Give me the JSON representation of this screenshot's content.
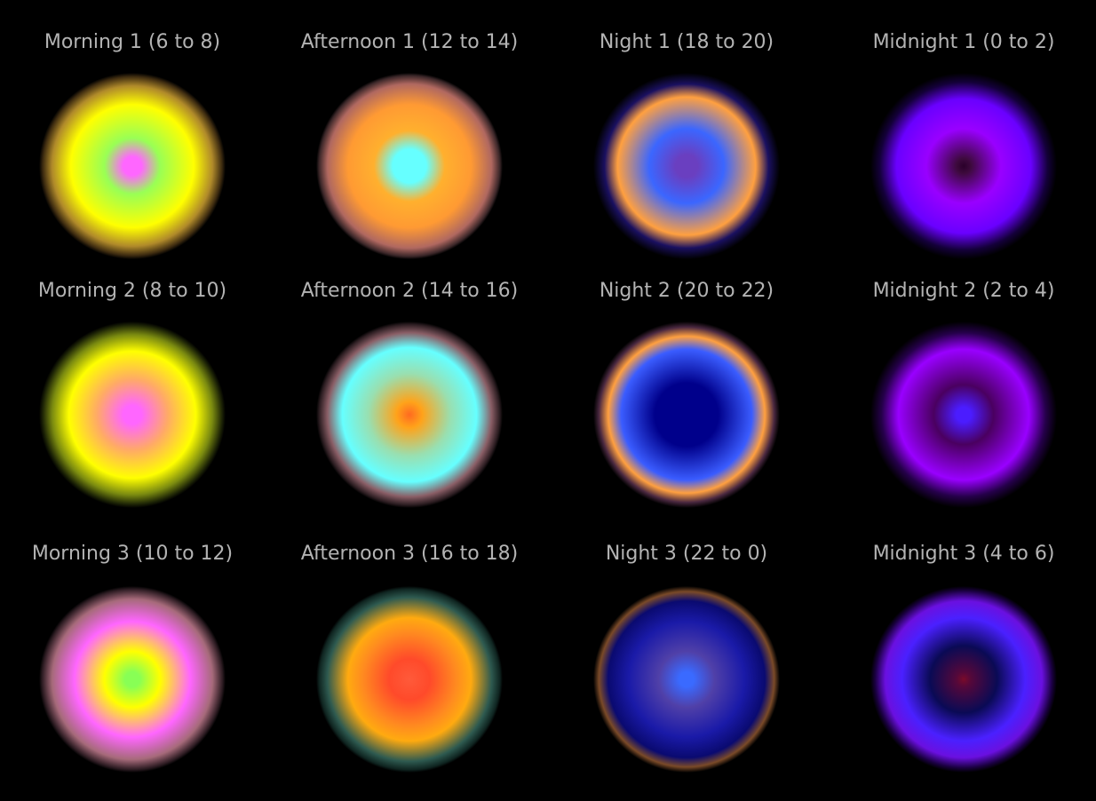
{
  "background": "#000000",
  "label_color": "#b3b3b3",
  "rows": [
    {
      "items": [
        {
          "name": "morning-1",
          "label": "Morning 1 (6 to 8)",
          "stops": [
            {
              "color": "#ff66ff",
              "pos": 0
            },
            {
              "color": "#ff66ff",
              "pos": 10
            },
            {
              "color": "#99ff55",
              "pos": 30
            },
            {
              "color": "#ffff00",
              "pos": 66
            },
            {
              "color": "#b08a2a",
              "pos": 86
            },
            {
              "color": "#3d2b10",
              "pos": 96
            },
            {
              "color": "#000000",
              "pos": 100
            }
          ]
        },
        {
          "name": "afternoon-1",
          "label": "Afternoon 1 (12 to 14)",
          "stops": [
            {
              "color": "#66ffff",
              "pos": 0
            },
            {
              "color": "#66ffff",
              "pos": 18
            },
            {
              "color": "#ffb02e",
              "pos": 38
            },
            {
              "color": "#ff9a33",
              "pos": 66
            },
            {
              "color": "#b06860",
              "pos": 88
            },
            {
              "color": "#3a2628",
              "pos": 97
            },
            {
              "color": "#000000",
              "pos": 100
            }
          ]
        },
        {
          "name": "night-1",
          "label": "Night 1 (18 to 20)",
          "stops": [
            {
              "color": "#6a3fc0",
              "pos": 0
            },
            {
              "color": "#6a3fc0",
              "pos": 12
            },
            {
              "color": "#3b66ff",
              "pos": 40
            },
            {
              "color": "#ffa040",
              "pos": 74
            },
            {
              "color": "#1a1060",
              "pos": 88
            },
            {
              "color": "#000000",
              "pos": 100
            }
          ]
        },
        {
          "name": "midnight-1",
          "label": "Midnight 1 (0 to 2)",
          "stops": [
            {
              "color": "#2a002a",
              "pos": 0
            },
            {
              "color": "#3d0a3d",
              "pos": 8
            },
            {
              "color": "#9900ff",
              "pos": 40
            },
            {
              "color": "#6a00ff",
              "pos": 72
            },
            {
              "color": "#14003a",
              "pos": 90
            },
            {
              "color": "#000000",
              "pos": 100
            }
          ]
        }
      ]
    },
    {
      "items": [
        {
          "name": "morning-2",
          "label": "Morning 2 (8 to 10)",
          "stops": [
            {
              "color": "#ff66ff",
              "pos": 0
            },
            {
              "color": "#ff66ff",
              "pos": 10
            },
            {
              "color": "#ffaa66",
              "pos": 38
            },
            {
              "color": "#ffff00",
              "pos": 68
            },
            {
              "color": "#7a8a10",
              "pos": 86
            },
            {
              "color": "#1f2606",
              "pos": 96
            },
            {
              "color": "#000000",
              "pos": 100
            }
          ]
        },
        {
          "name": "afternoon-2",
          "label": "Afternoon 2 (14 to 16)",
          "stops": [
            {
              "color": "#ff6a20",
              "pos": 0
            },
            {
              "color": "#ffa31a",
              "pos": 14
            },
            {
              "color": "#99dfb0",
              "pos": 44
            },
            {
              "color": "#66ffff",
              "pos": 72
            },
            {
              "color": "#8a5e66",
              "pos": 88
            },
            {
              "color": "#2a1c20",
              "pos": 97
            },
            {
              "color": "#000000",
              "pos": 100
            }
          ]
        },
        {
          "name": "night-2",
          "label": "Night 2 (20 to 22)",
          "stops": [
            {
              "color": "#00008b",
              "pos": 0
            },
            {
              "color": "#00008b",
              "pos": 34
            },
            {
              "color": "#3a5cff",
              "pos": 70
            },
            {
              "color": "#ffa040",
              "pos": 84
            },
            {
              "color": "#4a2840",
              "pos": 94
            },
            {
              "color": "#000000",
              "pos": 100
            }
          ]
        },
        {
          "name": "midnight-2",
          "label": "Midnight 2 (2 to 4)",
          "stops": [
            {
              "color": "#4b1cff",
              "pos": 0
            },
            {
              "color": "#4b1cff",
              "pos": 8
            },
            {
              "color": "#4a0060",
              "pos": 32
            },
            {
              "color": "#9900ff",
              "pos": 70
            },
            {
              "color": "#25004a",
              "pos": 88
            },
            {
              "color": "#000000",
              "pos": 100
            }
          ]
        }
      ]
    },
    {
      "items": [
        {
          "name": "morning-3",
          "label": "Morning 3 (10 to 12)",
          "stops": [
            {
              "color": "#88ff55",
              "pos": 0
            },
            {
              "color": "#88ff55",
              "pos": 8
            },
            {
              "color": "#ffff00",
              "pos": 30
            },
            {
              "color": "#ff66ff",
              "pos": 62
            },
            {
              "color": "#a66a7a",
              "pos": 86
            },
            {
              "color": "#2a1a20",
              "pos": 97
            },
            {
              "color": "#000000",
              "pos": 100
            }
          ]
        },
        {
          "name": "afternoon-3",
          "label": "Afternoon 3 (16 to 18)",
          "stops": [
            {
              "color": "#ff5a3a",
              "pos": 0
            },
            {
              "color": "#ff4a2a",
              "pos": 22
            },
            {
              "color": "#ff8a20",
              "pos": 50
            },
            {
              "color": "#ffaa10",
              "pos": 66
            },
            {
              "color": "#2e5a50",
              "pos": 88
            },
            {
              "color": "#0f2420",
              "pos": 97
            },
            {
              "color": "#000000",
              "pos": 100
            }
          ]
        },
        {
          "name": "night-3",
          "label": "Night 3 (22 to 0)",
          "stops": [
            {
              "color": "#3a6aff",
              "pos": 0
            },
            {
              "color": "#3a6aff",
              "pos": 8
            },
            {
              "color": "#5040a8",
              "pos": 30
            },
            {
              "color": "#1a1aa8",
              "pos": 62
            },
            {
              "color": "#0a0a70",
              "pos": 84
            },
            {
              "color": "#7a4a28",
              "pos": 94
            },
            {
              "color": "#000000",
              "pos": 100
            }
          ]
        },
        {
          "name": "midnight-3",
          "label": "Midnight 3 (4 to 6)",
          "stops": [
            {
              "color": "#7a0a2a",
              "pos": 0
            },
            {
              "color": "#55083a",
              "pos": 8
            },
            {
              "color": "#0a0a55",
              "pos": 36
            },
            {
              "color": "#4a20ff",
              "pos": 66
            },
            {
              "color": "#6a10e0",
              "pos": 84
            },
            {
              "color": "#1a0040",
              "pos": 95
            },
            {
              "color": "#000000",
              "pos": 100
            }
          ]
        }
      ]
    }
  ]
}
